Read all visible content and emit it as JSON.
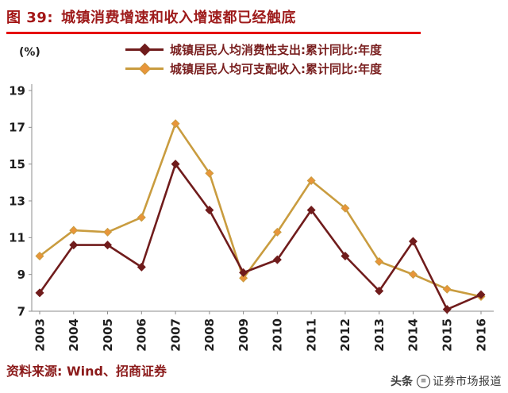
{
  "header": {
    "prefix": "图 39:",
    "title": "城镇消费增速和收入增速都已经触底"
  },
  "chart_data": {
    "type": "line",
    "title": "城镇消费增速和收入增速都已经触底",
    "unit_label": "(%)",
    "x": [
      2003,
      2004,
      2005,
      2006,
      2007,
      2008,
      2009,
      2010,
      2011,
      2012,
      2013,
      2014,
      2015,
      2016
    ],
    "series": [
      {
        "name": "城镇居民人均消费性支出:累计同比:年度",
        "color": "#701C1C",
        "marker": "#701C1C",
        "values": [
          8.0,
          10.6,
          10.6,
          9.4,
          15.0,
          12.5,
          9.1,
          9.8,
          12.5,
          10.0,
          8.1,
          10.8,
          7.1,
          7.9
        ]
      },
      {
        "name": "城镇居民人均可支配收入:累计同比:年度",
        "color": "#C99C3F",
        "marker": "#E8953A",
        "values": [
          10.0,
          11.4,
          11.3,
          12.1,
          17.2,
          14.5,
          8.8,
          11.3,
          14.1,
          12.6,
          9.7,
          9.0,
          8.2,
          7.8
        ]
      }
    ],
    "ylim": [
      7,
      19
    ],
    "yticks": [
      7,
      9,
      11,
      13,
      15,
      17,
      19
    ],
    "legend_position": "top",
    "grid": "off",
    "axis_color": "#8c8c8c",
    "tick_label_color": "#1f1f1f"
  },
  "footer": {
    "source": "资料来源:  Wind、招商证券"
  },
  "watermark": {
    "platform": "头条",
    "icon": "≡",
    "handle": "证券市场报道"
  }
}
